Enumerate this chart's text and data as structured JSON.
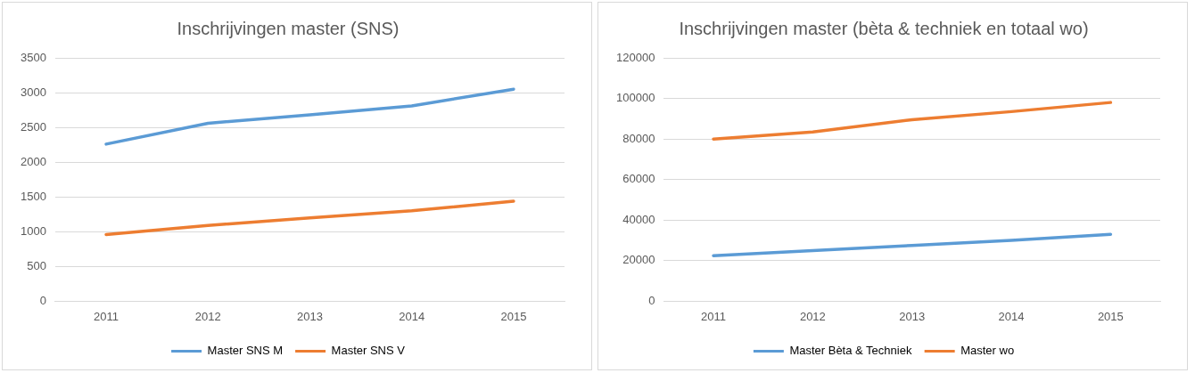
{
  "chart_data": [
    {
      "type": "line",
      "title": "Inschrijvingen master (SNS)",
      "categories": [
        "2011",
        "2012",
        "2013",
        "2014",
        "2015"
      ],
      "series": [
        {
          "name": "Master SNS M",
          "color": "#5b9bd5",
          "values": [
            2260,
            2560,
            2680,
            2810,
            3050
          ]
        },
        {
          "name": "Master SNS V",
          "color": "#ed7d31",
          "values": [
            960,
            1090,
            1200,
            1300,
            1440
          ]
        }
      ],
      "ylim": [
        0,
        3500
      ],
      "yticks": [
        0,
        500,
        1000,
        1500,
        2000,
        2500,
        3000,
        3500
      ],
      "grid": "y",
      "legend": "bottom",
      "marker": "none"
    },
    {
      "type": "line",
      "title": "Inschrijvingen master (bèta & techniek en totaal wo)",
      "categories": [
        "2011",
        "2012",
        "2013",
        "2014",
        "2015"
      ],
      "series": [
        {
          "name": "Master Bèta & Techniek",
          "color": "#5b9bd5",
          "values": [
            22500,
            25000,
            27500,
            30000,
            33000
          ]
        },
        {
          "name": "Master wo",
          "color": "#ed7d31",
          "values": [
            80000,
            83500,
            89500,
            93500,
            98000
          ]
        }
      ],
      "ylim": [
        0,
        120000
      ],
      "yticks": [
        0,
        20000,
        40000,
        60000,
        80000,
        100000,
        120000
      ],
      "grid": "y",
      "legend": "bottom",
      "marker": "none"
    }
  ]
}
